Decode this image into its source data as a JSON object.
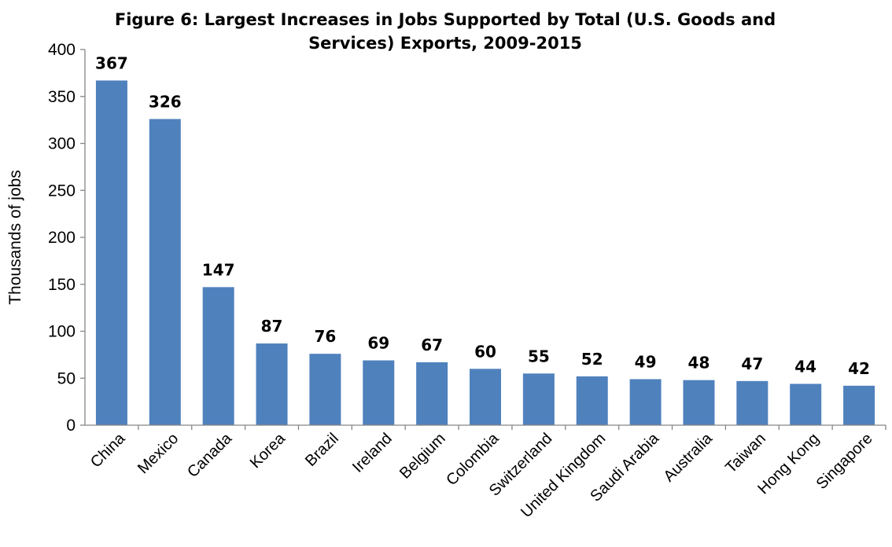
{
  "chart_data": {
    "type": "bar",
    "title": "Figure 6: Largest Increases in Jobs Supported by Total (U.S. Goods and Services) Exports, 2009-2015",
    "title_lines": [
      "Figure 6: Largest Increases in Jobs Supported by Total (U.S. Goods and",
      "Services) Exports, 2009-2015"
    ],
    "xlabel": "",
    "ylabel": "Thousands of jobs",
    "ylim": [
      0,
      400
    ],
    "yticks": [
      0,
      50,
      100,
      150,
      200,
      250,
      300,
      350,
      400
    ],
    "categories": [
      "China",
      "Mexico",
      "Canada",
      "Korea",
      "Brazil",
      "Ireland",
      "Belgium",
      "Colombia",
      "Switzerland",
      "United Kingdom",
      "Saudi Arabia",
      "Australia",
      "Taiwan",
      "Hong Kong",
      "Singapore"
    ],
    "values": [
      367,
      326,
      147,
      87,
      76,
      69,
      67,
      60,
      55,
      52,
      49,
      48,
      47,
      44,
      42
    ],
    "data_labels": [
      "367",
      "326",
      "147",
      "87",
      "76",
      "69",
      "67",
      "60",
      "55",
      "52",
      "49",
      "48",
      "47",
      "44",
      "42"
    ],
    "grid": false,
    "legend": "none",
    "bar_color": "#4f81bd",
    "axis_color": "#868686"
  }
}
